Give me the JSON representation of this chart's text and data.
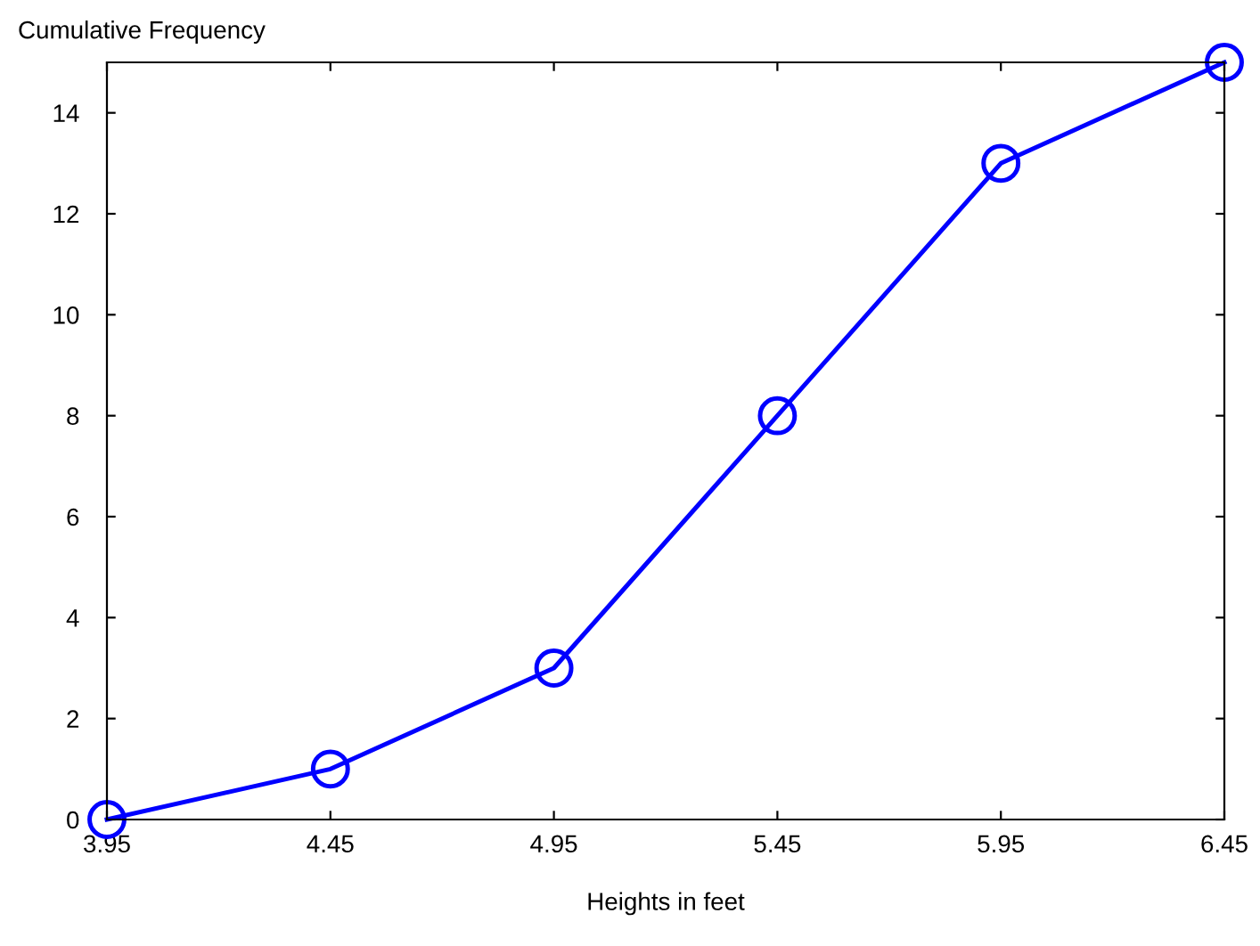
{
  "chart_data": {
    "type": "line",
    "xlabel": "Heights in feet",
    "ylabel": "Cumulative Frequency",
    "x": [
      3.95,
      4.45,
      4.95,
      5.45,
      5.95,
      6.45
    ],
    "series": [
      {
        "color": "#0000ff",
        "values": [
          0,
          1,
          3,
          8,
          13,
          15
        ]
      }
    ],
    "xlim": [
      3.95,
      6.45
    ],
    "xticks": [
      3.95,
      4.45,
      4.95,
      5.45,
      5.95,
      6.45
    ],
    "ylim": [
      0,
      15
    ],
    "yticks": [
      0,
      2,
      4,
      6,
      8,
      10,
      12,
      14
    ],
    "grid": false,
    "marker": "circle",
    "line_style": "solid"
  }
}
